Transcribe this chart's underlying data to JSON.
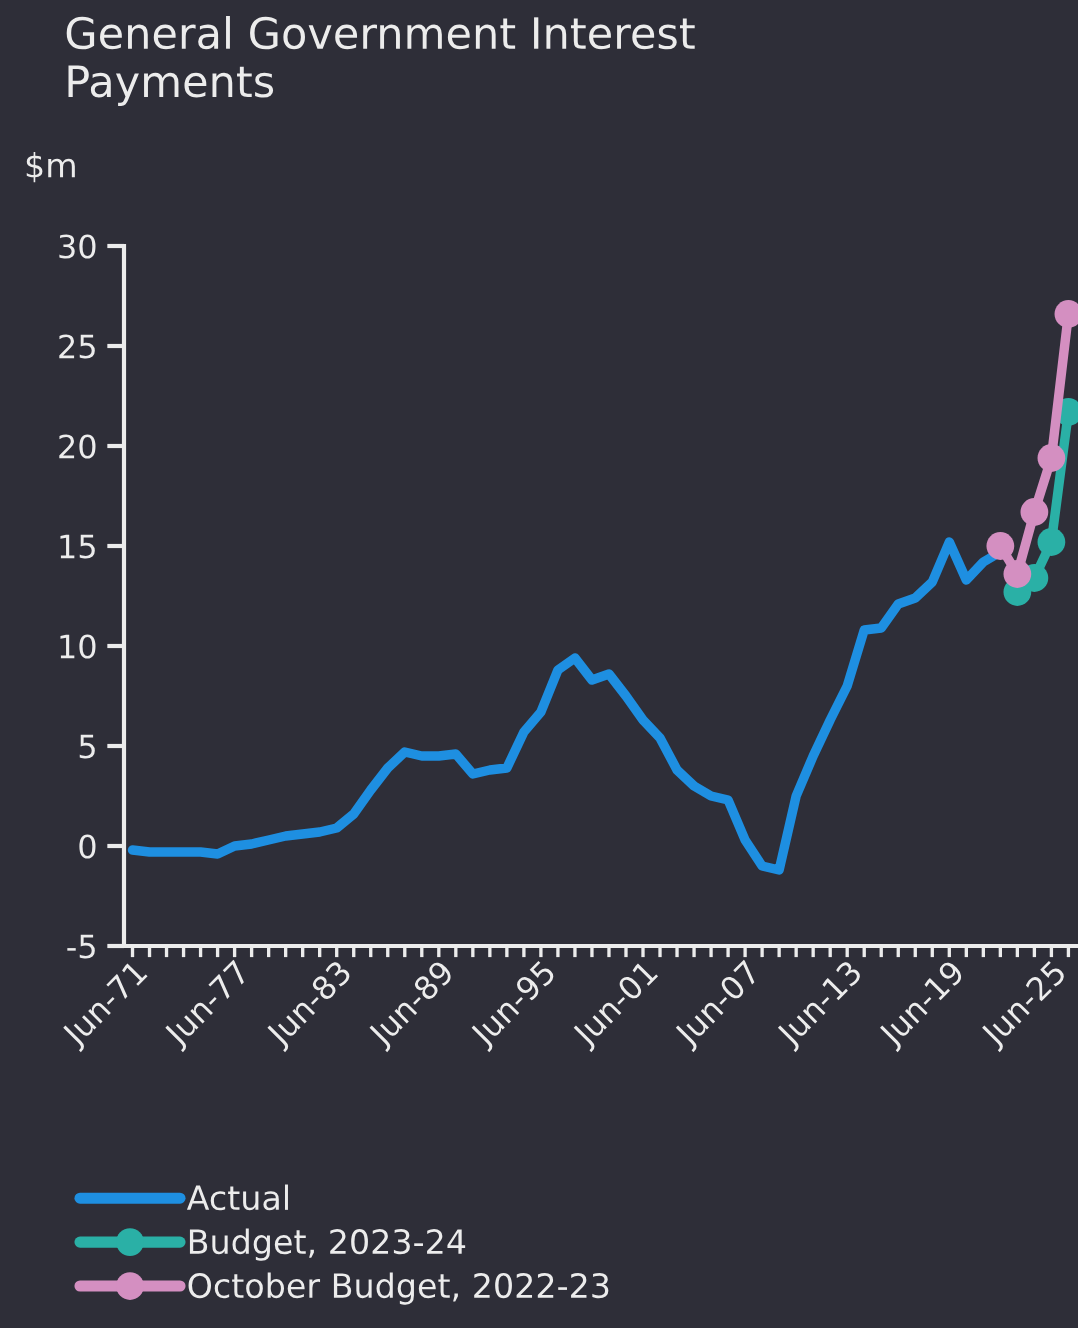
{
  "chart_data": {
    "type": "line",
    "title": "General Government Interest Payments",
    "ylabel": "$m",
    "ylim": [
      -5,
      30
    ],
    "yticks": [
      -5,
      0,
      5,
      10,
      15,
      20,
      25,
      30
    ],
    "categories": [
      "Jun-71",
      null,
      null,
      null,
      null,
      null,
      "Jun-77",
      null,
      null,
      null,
      null,
      null,
      "Jun-83",
      null,
      null,
      null,
      null,
      null,
      "Jun-89",
      null,
      null,
      null,
      null,
      null,
      "Jun-95",
      null,
      null,
      null,
      null,
      null,
      "Jun-01",
      null,
      null,
      null,
      null,
      null,
      "Jun-07",
      null,
      null,
      null,
      null,
      null,
      "Jun-13",
      null,
      null,
      null,
      null,
      null,
      "Jun-19",
      null,
      null,
      null,
      null,
      null,
      "Jun-25",
      null
    ],
    "grid": false,
    "legend": "bottom",
    "line_style": "solid",
    "series": [
      {
        "name": "Actual",
        "color": "#1e8fe1",
        "marker": "none",
        "values": [
          -0.2,
          -0.3,
          -0.3,
          -0.3,
          -0.3,
          -0.4,
          0.0,
          0.1,
          0.3,
          0.5,
          0.6,
          0.7,
          0.9,
          1.6,
          2.8,
          3.9,
          4.7,
          4.5,
          4.5,
          4.6,
          3.6,
          3.8,
          3.9,
          5.7,
          6.7,
          8.8,
          9.4,
          8.3,
          8.6,
          7.5,
          6.3,
          5.4,
          3.8,
          3.0,
          2.5,
          2.3,
          0.3,
          -1.0,
          -1.2,
          2.5,
          4.5,
          6.3,
          8.0,
          10.8,
          10.9,
          12.1,
          12.4,
          13.2,
          15.2,
          13.3,
          14.2,
          14.7,
          null,
          null,
          null,
          null
        ]
      },
      {
        "name": "Budget, 2023-24",
        "color": "#2ab0a6",
        "marker": "circle",
        "values": [
          null,
          null,
          null,
          null,
          null,
          null,
          null,
          null,
          null,
          null,
          null,
          null,
          null,
          null,
          null,
          null,
          null,
          null,
          null,
          null,
          null,
          null,
          null,
          null,
          null,
          null,
          null,
          null,
          null,
          null,
          null,
          null,
          null,
          null,
          null,
          null,
          null,
          null,
          null,
          null,
          null,
          null,
          null,
          null,
          null,
          null,
          null,
          null,
          null,
          null,
          null,
          null,
          12.7,
          13.4,
          15.2,
          21.7
        ]
      },
      {
        "name": "October Budget, 2022-23",
        "color": "#d48fc1",
        "marker": "circle",
        "values": [
          null,
          null,
          null,
          null,
          null,
          null,
          null,
          null,
          null,
          null,
          null,
          null,
          null,
          null,
          null,
          null,
          null,
          null,
          null,
          null,
          null,
          null,
          null,
          null,
          null,
          null,
          null,
          null,
          null,
          null,
          null,
          null,
          null,
          null,
          null,
          null,
          null,
          null,
          null,
          null,
          null,
          null,
          null,
          null,
          null,
          null,
          null,
          null,
          null,
          null,
          null,
          15.0,
          13.6,
          16.7,
          19.4,
          26.6
        ]
      }
    ]
  }
}
